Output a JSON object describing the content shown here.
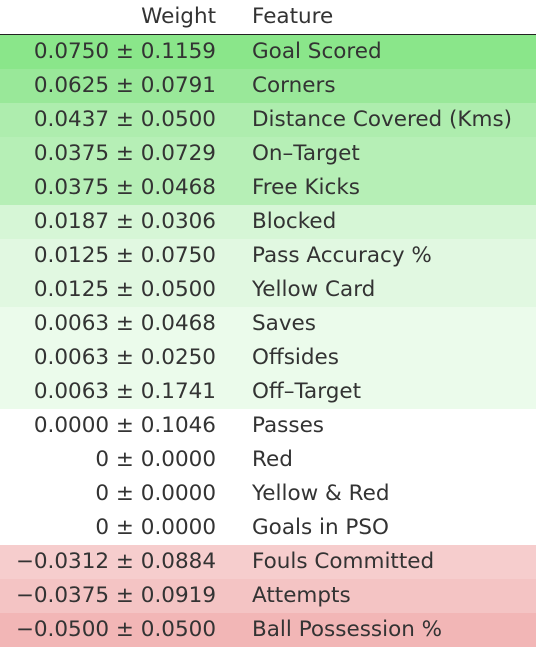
{
  "header": {
    "weight": "Weight",
    "feature": "Feature"
  },
  "rows": [
    {
      "weight": "0.0750 ± 0.1159",
      "feature": "Goal Scored",
      "color": "#8ae68a"
    },
    {
      "weight": "0.0625 ± 0.0791",
      "feature": "Corners",
      "color": "#99e899"
    },
    {
      "weight": "0.0437 ± 0.0500",
      "feature": "Distance Covered (Kms)",
      "color": "#aeedae"
    },
    {
      "weight": "0.0375 ± 0.0729",
      "feature": "On–Target",
      "color": "#b6efb6"
    },
    {
      "weight": "0.0375 ± 0.0468",
      "feature": "Free Kicks",
      "color": "#b6efb6"
    },
    {
      "weight": "0.0187 ± 0.0306",
      "feature": "Blocked",
      "color": "#d6f6d6"
    },
    {
      "weight": "0.0125 ± 0.0750",
      "feature": "Pass Accuracy %",
      "color": "#e1f8e1"
    },
    {
      "weight": "0.0125 ± 0.0500",
      "feature": "Yellow Card",
      "color": "#e1f8e1"
    },
    {
      "weight": "0.0063 ± 0.0468",
      "feature": "Saves",
      "color": "#ebfbeb"
    },
    {
      "weight": "0.0063 ± 0.0250",
      "feature": "Offsides",
      "color": "#ebfbeb"
    },
    {
      "weight": "0.0063 ± 0.1741",
      "feature": "Off–Target",
      "color": "#ebfbeb"
    },
    {
      "weight": "0.0000 ± 0.1046",
      "feature": "Passes",
      "color": "#ffffff"
    },
    {
      "weight": "0 ± 0.0000",
      "feature": "Red",
      "color": "#ffffff"
    },
    {
      "weight": "0 ± 0.0000",
      "feature": "Yellow & Red",
      "color": "#ffffff"
    },
    {
      "weight": "0 ± 0.0000",
      "feature": "Goals in PSO",
      "color": "#ffffff"
    },
    {
      "weight": "−0.0312 ± 0.0884",
      "feature": "Fouls Committed",
      "color": "#f6cdcd"
    },
    {
      "weight": "−0.0375 ± 0.0919",
      "feature": "Attempts",
      "color": "#f4c4c4"
    },
    {
      "weight": "−0.0500 ± 0.0500",
      "feature": "Ball Possession %",
      "color": "#f2b6b6"
    }
  ]
}
